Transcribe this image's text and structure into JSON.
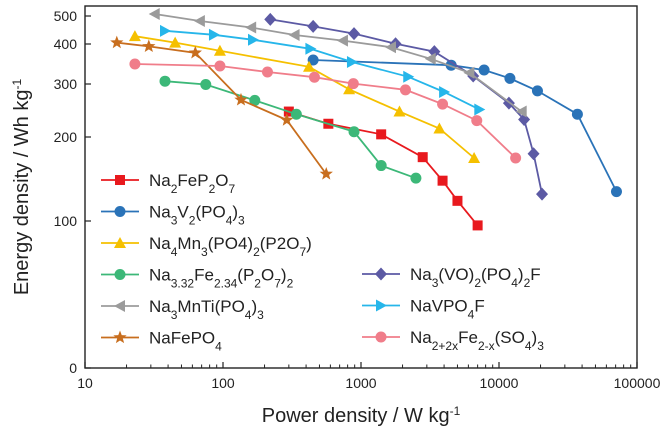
{
  "chart_data": {
    "type": "line",
    "xscale": "log",
    "yscale": "custom-nonlinear",
    "xlim": [
      10,
      100000
    ],
    "ylim": [
      0,
      500
    ],
    "xlabel": "Power density / W kg",
    "xlabel_sup": "-1",
    "ylabel": "Energy density / Wh kg",
    "ylabel_sup": "-1",
    "xticks": [
      10,
      100,
      1000,
      10000,
      100000
    ],
    "xtick_labels": [
      "10",
      "100",
      "1000",
      "10000",
      "100000"
    ],
    "yticks": [
      0,
      100,
      200,
      300,
      400,
      500
    ],
    "ytick_labels": [
      "0",
      "100",
      "200",
      "300",
      "400",
      "500"
    ],
    "legend_position": "inside-bottom",
    "series": [
      {
        "name": [
          [
            "Na",
            ""
          ],
          [
            "2",
            "sub"
          ],
          [
            "FeP",
            ""
          ],
          [
            "2",
            "sub"
          ],
          [
            "O",
            ""
          ],
          [
            "7",
            "sub"
          ]
        ],
        "color": "#e8191e",
        "marker": "square",
        "x": [
          300,
          580,
          1400,
          2800,
          3900,
          5000,
          7000
        ],
        "y": [
          248,
          225,
          205,
          176,
          148,
          124,
          97
        ]
      },
      {
        "name": [
          [
            "Na",
            ""
          ],
          [
            "3",
            "sub"
          ],
          [
            "V",
            ""
          ],
          [
            "2",
            "sub"
          ],
          [
            "(PO",
            ""
          ],
          [
            "4",
            "sub"
          ],
          [
            ")",
            ""
          ],
          [
            "3",
            "sub"
          ]
        ],
        "color": "#2a73b8",
        "marker": "circle",
        "x": [
          450,
          4500,
          7800,
          12000,
          19000,
          37000,
          71000
        ],
        "y": [
          360,
          347,
          335,
          314,
          287,
          243,
          135
        ]
      },
      {
        "name": [
          [
            "Na",
            ""
          ],
          [
            "4",
            "sub"
          ],
          [
            "Mn",
            ""
          ],
          [
            "3",
            "sub"
          ],
          [
            "(PO4)",
            ""
          ],
          [
            "2",
            "sub"
          ],
          [
            "(P2O",
            ""
          ],
          [
            "7",
            "sub"
          ],
          [
            ")",
            ""
          ]
        ],
        "color": "#f5c000",
        "marker": "triangle-up",
        "x": [
          23,
          45,
          95,
          420,
          820,
          1900,
          3700,
          6600
        ],
        "y": [
          428,
          405,
          383,
          343,
          290,
          248,
          216,
          175
        ]
      },
      {
        "name": [
          [
            "Na",
            ""
          ],
          [
            "3.32",
            "sub"
          ],
          [
            "Fe",
            ""
          ],
          [
            "2.34",
            "sub"
          ],
          [
            "(P",
            ""
          ],
          [
            "2",
            "sub"
          ],
          [
            "O",
            ""
          ],
          [
            "7",
            "sub"
          ],
          [
            ")",
            ""
          ],
          [
            "2",
            "sub"
          ]
        ],
        "color": "#3cb878",
        "marker": "circle",
        "x": [
          38,
          75,
          170,
          340,
          890,
          1400,
          2500
        ],
        "y": [
          307,
          299,
          269,
          243,
          210,
          166,
          151
        ]
      },
      {
        "name": [
          [
            "Na",
            ""
          ],
          [
            "3",
            "sub"
          ],
          [
            "(VO)",
            ""
          ],
          [
            "2",
            "sub"
          ],
          [
            "(PO",
            ""
          ],
          [
            "4",
            "sub"
          ],
          [
            ")",
            ""
          ],
          [
            "2",
            "sub"
          ],
          [
            "F",
            ""
          ]
        ],
        "color": "#5c5aa4",
        "marker": "diamond",
        "x": [
          220,
          450,
          890,
          1780,
          3400,
          6500,
          11800,
          15200,
          17800,
          20500
        ],
        "y": [
          488,
          463,
          437,
          401,
          381,
          320,
          264,
          233,
          180,
          132
        ]
      },
      {
        "name": [
          [
            "Na",
            ""
          ],
          [
            "3",
            "sub"
          ],
          [
            "MnTi(PO",
            ""
          ],
          [
            "4",
            "sub"
          ],
          [
            ")",
            ""
          ],
          [
            "3",
            "sub"
          ]
        ],
        "color": "#9b9b9b",
        "marker": "triangle-left",
        "x": [
          32,
          68,
          160,
          330,
          740,
          1650,
          3200,
          6100,
          14600
        ],
        "y": [
          507,
          482,
          459,
          432,
          412,
          392,
          363,
          328,
          248
        ]
      },
      {
        "name": [
          [
            "NaVPO",
            ""
          ],
          [
            "4",
            "sub"
          ],
          [
            "F",
            ""
          ]
        ],
        "color": "#26b6ea",
        "marker": "triangle-right",
        "x": [
          38,
          86,
          165,
          430,
          860,
          2200,
          4000,
          7200
        ],
        "y": [
          447,
          433,
          415,
          388,
          355,
          318,
          285,
          252
        ]
      },
      {
        "name": [
          [
            "NaFePO",
            ""
          ],
          [
            "4",
            "sub"
          ]
        ],
        "color": "#c86e1e",
        "marker": "star",
        "x": [
          17,
          29,
          63,
          135,
          290,
          560
        ],
        "y": [
          405,
          394,
          378,
          270,
          232,
          156
        ]
      },
      {
        "name": [
          [
            "Na",
            ""
          ],
          [
            "2+2x",
            "sub"
          ],
          [
            "Fe",
            ""
          ],
          [
            "2-x",
            "sub"
          ],
          [
            "(SO",
            ""
          ],
          [
            "4",
            "sub"
          ],
          [
            ")",
            ""
          ],
          [
            "3",
            "sub"
          ]
        ],
        "color": "#f07d8a",
        "marker": "circle",
        "x": [
          23,
          95,
          210,
          460,
          880,
          2100,
          3900,
          6900,
          13200
        ],
        "y": [
          350,
          345,
          330,
          317,
          301,
          289,
          262,
          231,
          175
        ]
      }
    ]
  }
}
